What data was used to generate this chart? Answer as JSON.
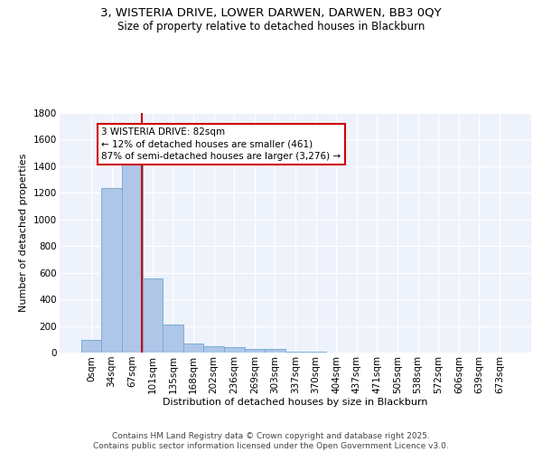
{
  "title_line1": "3, WISTERIA DRIVE, LOWER DARWEN, DARWEN, BB3 0QY",
  "title_line2": "Size of property relative to detached houses in Blackburn",
  "xlabel": "Distribution of detached houses by size in Blackburn",
  "ylabel": "Number of detached properties",
  "categories": [
    "0sqm",
    "34sqm",
    "67sqm",
    "101sqm",
    "135sqm",
    "168sqm",
    "202sqm",
    "236sqm",
    "269sqm",
    "303sqm",
    "337sqm",
    "370sqm",
    "404sqm",
    "437sqm",
    "471sqm",
    "505sqm",
    "538sqm",
    "572sqm",
    "606sqm",
    "639sqm",
    "673sqm"
  ],
  "values": [
    95,
    1235,
    1510,
    560,
    210,
    70,
    50,
    40,
    30,
    25,
    10,
    5,
    3,
    2,
    1,
    0,
    0,
    0,
    0,
    0,
    0
  ],
  "bar_color": "#aec6e8",
  "bar_edge_color": "#7aadd4",
  "vline_x": 2.48,
  "vline_color": "#cc0000",
  "annotation_text": "3 WISTERIA DRIVE: 82sqm\n← 12% of detached houses are smaller (461)\n87% of semi-detached houses are larger (3,276) →",
  "annotation_box_color": "#cc0000",
  "ylim": [
    0,
    1800
  ],
  "yticks": [
    0,
    200,
    400,
    600,
    800,
    1000,
    1200,
    1400,
    1600,
    1800
  ],
  "bg_color": "#eef2fb",
  "footer_text": "Contains HM Land Registry data © Crown copyright and database right 2025.\nContains public sector information licensed under the Open Government Licence v3.0.",
  "title_fontsize": 9.5,
  "subtitle_fontsize": 8.5,
  "axis_label_fontsize": 8,
  "tick_fontsize": 7.5,
  "annotation_fontsize": 7.5,
  "footer_fontsize": 6.5
}
